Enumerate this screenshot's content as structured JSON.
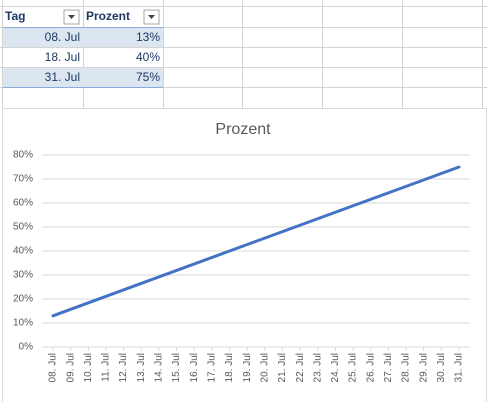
{
  "table": {
    "headers": [
      "Tag",
      "Prozent"
    ],
    "rows": [
      [
        "08. Jul",
        "13%"
      ],
      [
        "18. Jul",
        "40%"
      ],
      [
        "31. Jul",
        "75%"
      ]
    ]
  },
  "chart_data": {
    "type": "line",
    "title": "Prozent",
    "x": [
      "08. Jul",
      "18. Jul",
      "31. Jul"
    ],
    "values": [
      13,
      40,
      75
    ],
    "color": "#4472c4",
    "ylim": [
      0,
      80
    ],
    "yticks": [
      {
        "value": 0,
        "label": "0%"
      },
      {
        "value": 10,
        "label": "10%"
      },
      {
        "value": 20,
        "label": "20%"
      },
      {
        "value": 30,
        "label": "30%"
      },
      {
        "value": 40,
        "label": "40%"
      },
      {
        "value": 50,
        "label": "50%"
      },
      {
        "value": 60,
        "label": "60%"
      },
      {
        "value": 70,
        "label": "70%"
      },
      {
        "value": 80,
        "label": "80%"
      }
    ],
    "xticks": [
      "08. Jul",
      "09. Jul",
      "10. Jul",
      "11. Jul",
      "12. Jul",
      "13. Jul",
      "14. Jul",
      "15. Jul",
      "16. Jul",
      "17. Jul",
      "18. Jul",
      "19. Jul",
      "20. Jul",
      "21. Jul",
      "22. Jul",
      "23. Jul",
      "24. Jul",
      "25. Jul",
      "26. Jul",
      "27. Jul",
      "28. Jul",
      "29. Jul",
      "30. Jul",
      "31. Jul"
    ],
    "grid": true
  }
}
